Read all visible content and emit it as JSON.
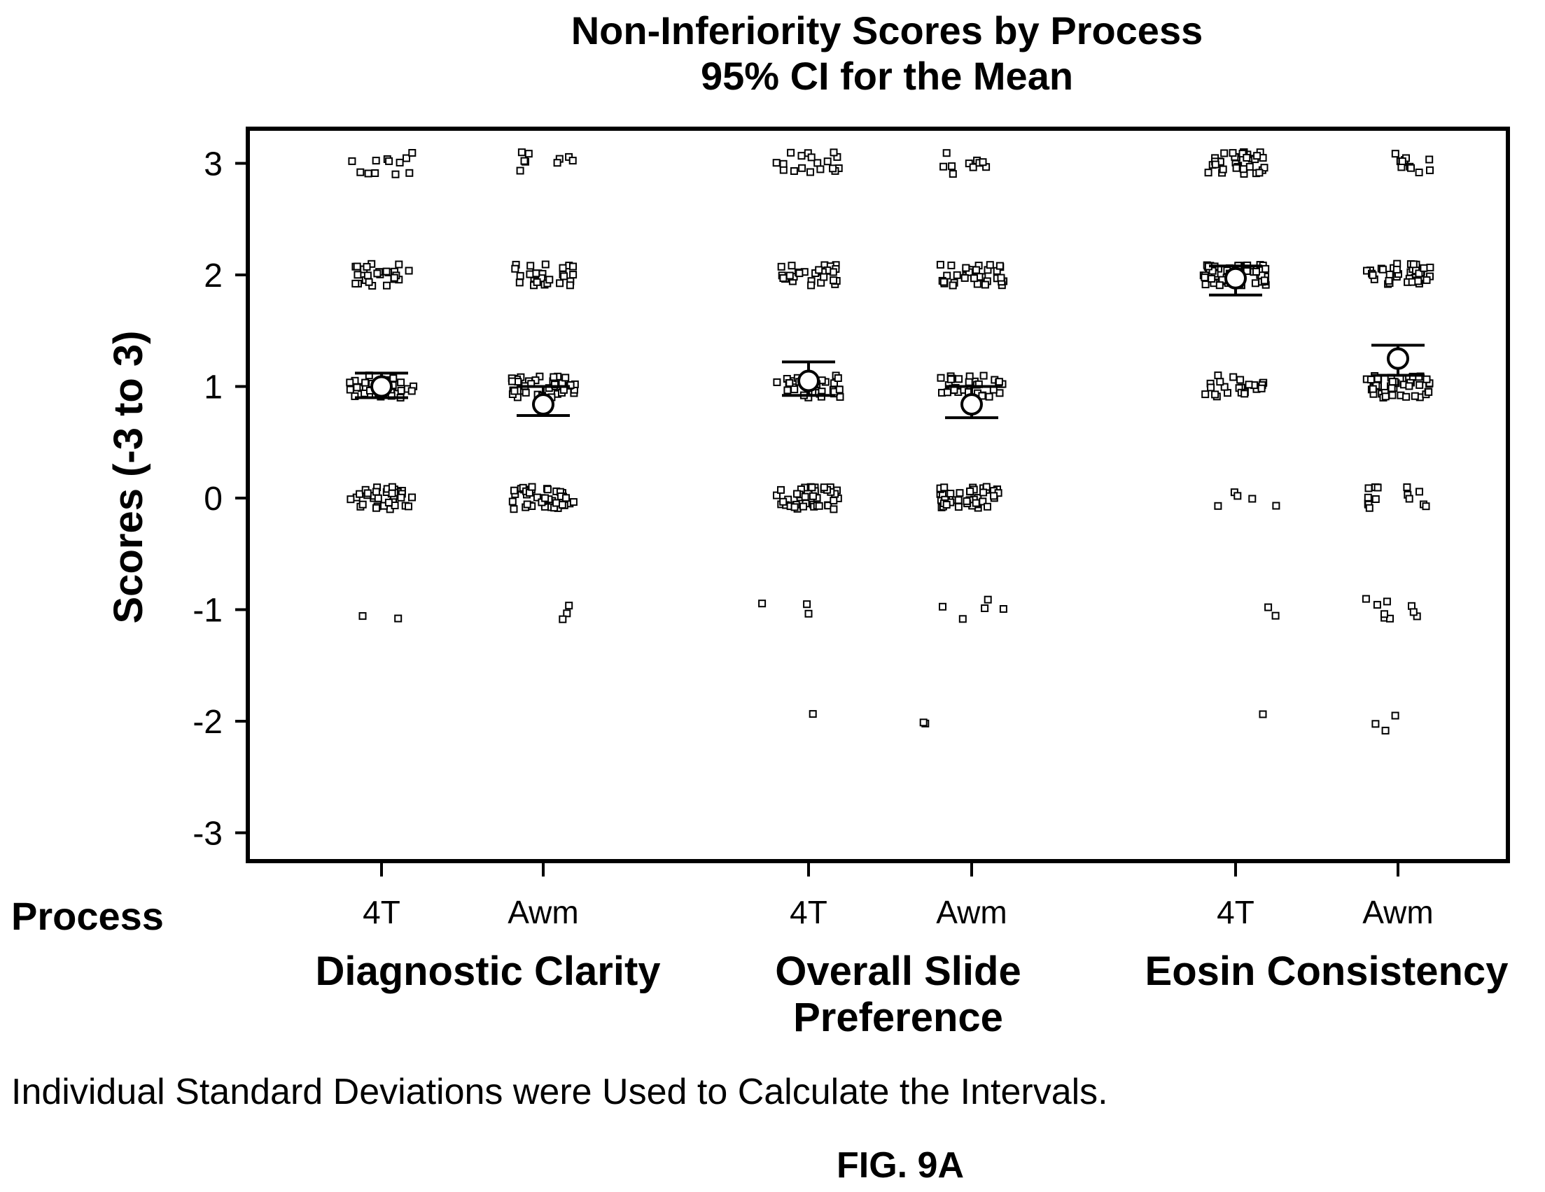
{
  "chart_data": {
    "type": "scatter",
    "title": "Non-Inferiority Scores by Process",
    "subtitle": "95% CI for the Mean",
    "ylabel": "Scores (-3 to 3)",
    "ylim": [
      -3,
      3
    ],
    "yticks": [
      "3",
      "2",
      "1",
      "0",
      "-1",
      "-2",
      "-3"
    ],
    "ytick_values": [
      3,
      2,
      1,
      0,
      -1,
      -2,
      -3
    ],
    "xaxis_title": "Process",
    "groups": [
      {
        "name": "Diagnostic Clarity",
        "processes": [
          {
            "label": "4T",
            "mean": 1.0,
            "ci": [
              0.9,
              1.12
            ],
            "counts": {
              "3": 12,
              "2": 26,
              "1": 36,
              "0": 40,
              "-1": 2,
              "-2": 0
            }
          },
          {
            "label": "Awm",
            "mean": 0.84,
            "ci": [
              0.74,
              1.0
            ],
            "counts": {
              "3": 9,
              "2": 28,
              "1": 38,
              "0": 42,
              "-1": 3,
              "-2": 0
            }
          }
        ]
      },
      {
        "name": "Overall Slide Preference",
        "name_lines": [
          "Overall Slide",
          "Preference"
        ],
        "processes": [
          {
            "label": "4T",
            "mean": 1.05,
            "ci": [
              0.92,
              1.22
            ],
            "counts": {
              "3": 18,
              "2": 28,
              "1": 34,
              "0": 42,
              "-1": 3,
              "-2": 1
            }
          },
          {
            "label": "Awm",
            "mean": 0.84,
            "ci": [
              0.72,
              1.0
            ],
            "counts": {
              "3": 10,
              "2": 34,
              "1": 32,
              "0": 44,
              "-1": 5,
              "-2": 2
            }
          }
        ]
      },
      {
        "name": "Eosin Consistency",
        "processes": [
          {
            "label": "4T",
            "mean": 1.97,
            "ci": [
              1.82,
              2.08
            ],
            "counts": {
              "3": 34,
              "2": 62,
              "1": 24,
              "0": 5,
              "-1": 2,
              "-2": 1
            }
          },
          {
            "label": "Awm",
            "mean": 1.25,
            "ci": [
              1.1,
              1.37
            ],
            "counts": {
              "3": 12,
              "2": 40,
              "1": 46,
              "0": 16,
              "-1": 9,
              "-2": 3
            }
          }
        ]
      }
    ],
    "note": "Individual Standard Deviations were Used to Calculate the Intervals.",
    "figure_label": "FIG. 9A"
  }
}
